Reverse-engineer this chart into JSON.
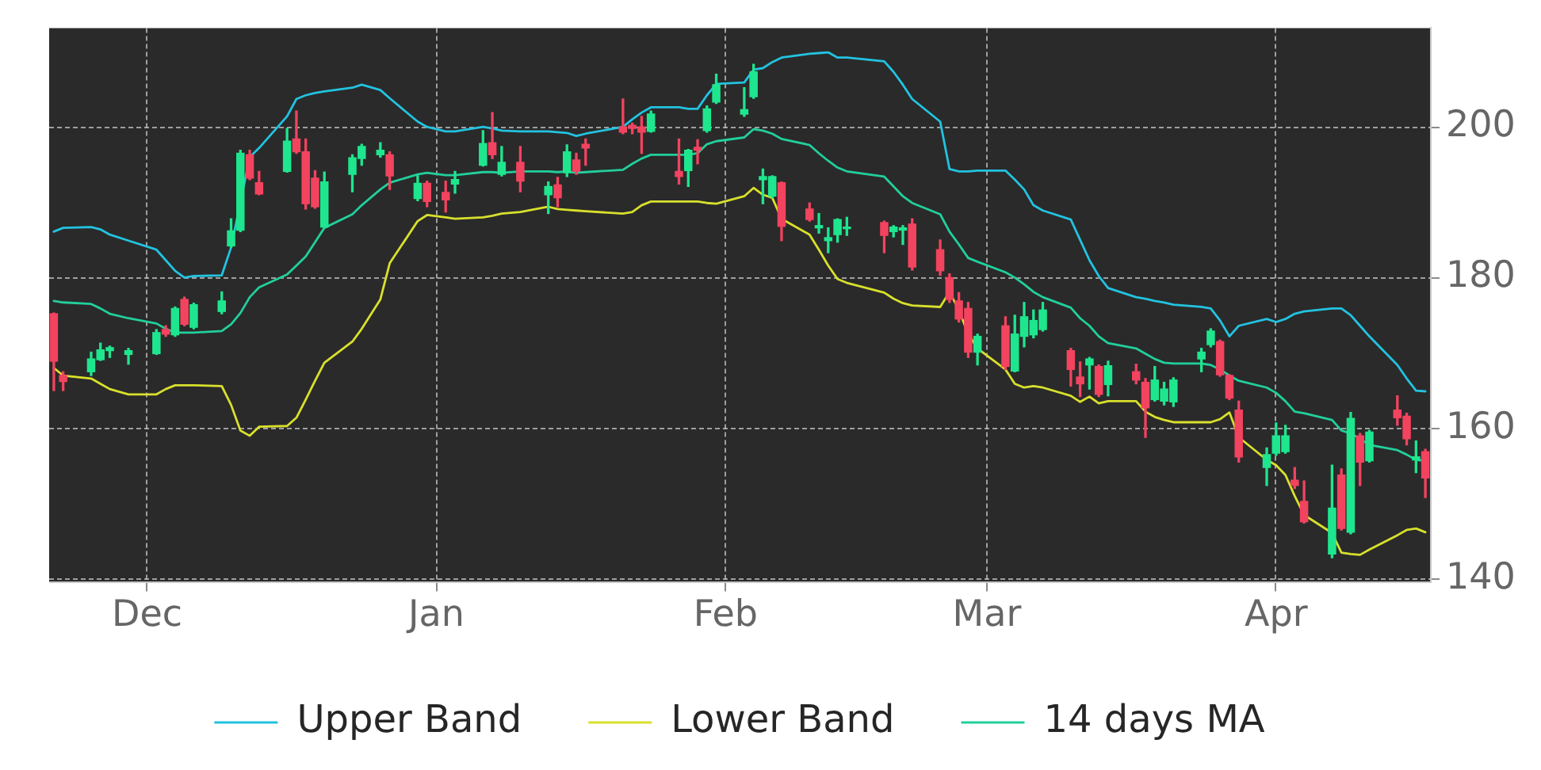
{
  "chart_data": {
    "type": "candlestick",
    "categories": [
      null,
      null,
      null,
      null,
      null,
      null,
      null,
      null,
      null,
      null,
      "Dec",
      null,
      null,
      null,
      null,
      null,
      null,
      null,
      null,
      null,
      null,
      null,
      null,
      null,
      null,
      null,
      null,
      null,
      null,
      null,
      null,
      null,
      null,
      null,
      null,
      null,
      null,
      null,
      null,
      null,
      null,
      "Jan",
      null,
      null,
      null,
      null,
      null,
      null,
      null,
      null,
      null,
      null,
      null,
      null,
      null,
      null,
      null,
      null,
      null,
      null,
      null,
      null,
      null,
      null,
      null,
      null,
      null,
      null,
      null,
      null,
      null,
      null,
      "Feb",
      null,
      null,
      null,
      null,
      null,
      null,
      null,
      null,
      null,
      null,
      null,
      null,
      null,
      null,
      null,
      null,
      null,
      null,
      null,
      null,
      null,
      null,
      null,
      null,
      null,
      null,
      null,
      "Mar",
      null,
      null,
      null,
      null,
      null,
      null,
      null,
      null,
      null,
      null,
      null,
      null,
      null,
      null,
      null,
      null,
      null,
      null,
      null,
      null,
      null,
      null,
      null,
      null,
      null,
      null,
      null,
      null,
      null,
      null,
      "Apr",
      null,
      null,
      null,
      null,
      null,
      null,
      null,
      null,
      null,
      null,
      null,
      null,
      null,
      null,
      null,
      null
    ],
    "ohlc": [
      [
        175.2,
        175.3,
        165.0,
        168.9
      ],
      [
        167.0,
        167.5,
        165.0,
        166.2
      ],
      null,
      null,
      [
        167.5,
        170.1,
        167.0,
        169.2
      ],
      [
        169.1,
        171.3,
        169.0,
        170.4
      ],
      [
        170.3,
        170.9,
        169.4,
        170.7
      ],
      null,
      [
        169.8,
        170.6,
        168.5,
        170.3
      ],
      null,
      null,
      [
        169.9,
        173.1,
        169.8,
        172.7
      ],
      [
        173.1,
        173.6,
        172.2,
        172.5
      ],
      [
        172.4,
        176.1,
        172.2,
        175.9
      ],
      [
        177.1,
        177.4,
        173.6,
        173.8
      ],
      [
        173.4,
        176.6,
        173.2,
        176.4
      ],
      null,
      null,
      [
        175.5,
        178.1,
        175.2,
        176.9
      ],
      [
        184.2,
        187.8,
        184.0,
        186.2
      ],
      [
        186.3,
        196.9,
        186.1,
        196.5
      ],
      [
        196.3,
        196.9,
        193.0,
        193.2
      ],
      [
        192.6,
        194.1,
        191.0,
        191.1
      ],
      null,
      null,
      [
        194.1,
        199.8,
        194.0,
        198.1
      ],
      [
        198.4,
        202.1,
        196.5,
        196.7
      ],
      [
        196.7,
        198.4,
        189.1,
        189.8
      ],
      [
        193.2,
        194.2,
        189.2,
        189.4
      ],
      [
        186.7,
        194.0,
        186.6,
        192.7
      ],
      null,
      null,
      [
        193.7,
        196.3,
        191.4,
        195.9
      ],
      [
        195.8,
        197.7,
        194.9,
        197.4
      ],
      null,
      [
        196.3,
        197.9,
        196.0,
        196.9
      ],
      [
        196.3,
        196.7,
        191.7,
        193.5
      ],
      null,
      null,
      [
        190.5,
        193.5,
        190.2,
        192.5
      ],
      [
        192.5,
        192.8,
        189.4,
        190.1
      ],
      null,
      [
        191.3,
        192.8,
        188.7,
        190.3
      ],
      [
        192.4,
        194.1,
        191.2,
        193.0
      ],
      null,
      null,
      [
        194.9,
        199.5,
        194.8,
        197.8
      ],
      [
        197.9,
        201.9,
        195.8,
        196.3
      ],
      [
        193.7,
        197.4,
        193.5,
        195.3
      ],
      null,
      [
        195.3,
        197.4,
        191.4,
        192.8
      ],
      null,
      null,
      [
        191.0,
        192.7,
        188.5,
        192.1
      ],
      [
        192.3,
        193.3,
        189.4,
        190.6
      ],
      [
        193.9,
        197.6,
        193.4,
        196.7
      ],
      [
        195.6,
        196.5,
        193.7,
        194.1
      ],
      [
        197.7,
        198.4,
        194.9,
        197.2
      ],
      null,
      null,
      null,
      [
        200.0,
        203.7,
        199.1,
        199.3
      ],
      [
        200.2,
        200.5,
        199.1,
        199.8
      ],
      [
        200.0,
        201.4,
        196.5,
        199.3
      ],
      [
        199.4,
        202.1,
        199.3,
        201.7
      ],
      null,
      null,
      [
        194.1,
        198.4,
        192.4,
        193.4
      ],
      [
        194.2,
        197.0,
        192.1,
        196.9
      ],
      [
        197.3,
        198.3,
        195.1,
        196.9
      ],
      [
        199.5,
        202.8,
        199.3,
        202.4
      ],
      [
        203.3,
        207.0,
        203.1,
        205.6
      ],
      null,
      null,
      [
        201.7,
        205.2,
        201.4,
        202.3
      ],
      [
        204.0,
        208.3,
        203.8,
        207.3
      ],
      [
        193.0,
        194.4,
        189.8,
        193.4
      ],
      [
        190.8,
        193.5,
        190.6,
        193.4
      ],
      [
        192.6,
        192.7,
        184.9,
        186.8
      ],
      null,
      null,
      [
        189.1,
        189.9,
        187.5,
        187.7
      ],
      [
        186.6,
        188.5,
        185.9,
        186.9
      ],
      [
        184.9,
        186.6,
        183.3,
        185.3
      ],
      [
        185.7,
        187.8,
        184.7,
        187.7
      ],
      [
        186.5,
        188.0,
        185.6,
        186.7
      ],
      null,
      null,
      null,
      [
        187.3,
        187.5,
        183.3,
        185.6
      ],
      [
        186.1,
        186.9,
        185.4,
        186.7
      ],
      [
        186.3,
        186.9,
        184.4,
        186.6
      ],
      [
        187.1,
        187.8,
        181.0,
        181.4
      ],
      null,
      null,
      [
        183.7,
        185.0,
        180.3,
        180.9
      ],
      [
        180.0,
        180.5,
        176.7,
        177.1
      ],
      [
        176.9,
        178.0,
        174.1,
        174.5
      ],
      [
        175.9,
        176.7,
        169.4,
        170.1
      ],
      [
        170.1,
        172.5,
        168.4,
        172.2
      ],
      null,
      null,
      [
        173.6,
        174.8,
        167.8,
        168.2
      ],
      [
        167.6,
        175.0,
        167.5,
        172.5
      ],
      [
        172.2,
        176.7,
        170.8,
        174.8
      ],
      [
        172.4,
        175.7,
        172.0,
        174.3
      ],
      [
        173.1,
        176.7,
        172.9,
        175.7
      ],
      null,
      null,
      [
        170.3,
        170.6,
        165.6,
        167.8
      ],
      [
        166.8,
        168.8,
        164.2,
        165.9
      ],
      [
        168.4,
        169.4,
        165.2,
        169.2
      ],
      [
        168.2,
        168.4,
        164.2,
        164.5
      ],
      [
        165.8,
        168.9,
        164.3,
        168.3
      ],
      null,
      null,
      [
        167.5,
        168.5,
        165.9,
        166.4
      ],
      [
        166.1,
        166.6,
        158.8,
        162.7
      ],
      [
        163.8,
        168.2,
        163.6,
        166.4
      ],
      [
        163.6,
        166.1,
        163.1,
        165.2
      ],
      [
        163.5,
        166.7,
        162.9,
        166.4
      ],
      null,
      null,
      [
        169.2,
        170.6,
        167.5,
        170.1
      ],
      [
        171.1,
        173.2,
        170.8,
        172.9
      ],
      [
        171.5,
        171.7,
        166.9,
        167.1
      ],
      [
        167.0,
        167.1,
        163.8,
        164.0
      ],
      [
        162.4,
        163.6,
        155.5,
        156.2
      ],
      null,
      null,
      [
        154.8,
        157.4,
        152.4,
        156.5
      ],
      [
        156.7,
        160.7,
        156.4,
        159.0
      ],
      [
        156.9,
        160.4,
        156.7,
        159.0
      ],
      [
        153.1,
        154.8,
        152.0,
        152.4
      ],
      [
        150.3,
        153.0,
        147.4,
        147.6
      ],
      null,
      null,
      [
        143.3,
        155.1,
        142.8,
        149.4
      ],
      [
        153.8,
        154.6,
        146.5,
        146.7
      ],
      [
        146.2,
        162.1,
        146.0,
        161.3
      ],
      [
        159.0,
        159.3,
        152.4,
        155.5
      ],
      [
        155.7,
        159.7,
        155.5,
        159.5
      ],
      null,
      null,
      [
        162.4,
        164.3,
        160.4,
        161.4
      ],
      [
        161.6,
        162.0,
        157.8,
        158.6
      ],
      [
        155.8,
        158.3,
        154.1,
        156.2
      ],
      [
        156.9,
        157.2,
        150.8,
        153.4
      ]
    ],
    "colors": [
      "#f2435f",
      "#f2435f",
      null,
      null,
      "#1ee68e",
      "#1ee68e",
      "#1ee68e",
      null,
      "#1ee68e",
      null,
      null,
      "#1ee68e",
      "#f2435f",
      "#1ee68e",
      "#f2435f",
      "#1ee68e",
      null,
      null,
      "#1ee68e",
      "#1ee68e",
      "#1ee68e",
      "#f2435f",
      "#f2435f",
      null,
      null,
      "#1ee68e",
      "#f2435f",
      "#f2435f",
      "#f2435f",
      "#1ee68e",
      null,
      null,
      "#1ee68e",
      "#1ee68e",
      null,
      "#1ee68e",
      "#f2435f",
      null,
      null,
      "#1ee68e",
      "#f2435f",
      null,
      "#f2435f",
      "#1ee68e",
      null,
      null,
      "#1ee68e",
      "#f2435f",
      "#1ee68e",
      null,
      "#f2435f",
      null,
      null,
      "#1ee68e",
      "#f2435f",
      "#1ee68e",
      "#f2435f",
      "#f2435f",
      null,
      null,
      null,
      "#f2435f",
      "#f2435f",
      "#f2435f",
      "#1ee68e",
      null,
      null,
      "#f2435f",
      "#1ee68e",
      "#f2435f",
      "#1ee68e",
      "#1ee68e",
      null,
      null,
      "#1ee68e",
      "#1ee68e",
      "#1ee68e",
      "#1ee68e",
      "#f2435f",
      null,
      null,
      "#f2435f",
      "#1ee68e",
      "#1ee68e",
      "#1ee68e",
      "#1ee68e",
      null,
      null,
      null,
      "#f2435f",
      "#1ee68e",
      "#1ee68e",
      "#f2435f",
      null,
      null,
      "#f2435f",
      "#f2435f",
      "#f2435f",
      "#f2435f",
      "#1ee68e",
      null,
      null,
      "#f2435f",
      "#1ee68e",
      "#1ee68e",
      "#1ee68e",
      "#1ee68e",
      null,
      null,
      "#f2435f",
      "#f2435f",
      "#1ee68e",
      "#f2435f",
      "#1ee68e",
      null,
      null,
      "#f2435f",
      "#f2435f",
      "#1ee68e",
      "#1ee68e",
      "#1ee68e",
      null,
      null,
      "#1ee68e",
      "#1ee68e",
      "#f2435f",
      "#f2435f",
      "#f2435f",
      null,
      null,
      "#1ee68e",
      "#1ee68e",
      "#1ee68e",
      "#f2435f",
      "#f2435f",
      null,
      null,
      "#1ee68e",
      "#f2435f",
      "#1ee68e",
      "#f2435f",
      "#1ee68e",
      null,
      null,
      "#f2435f",
      "#f2435f",
      "#1ee68e",
      "#f2435f"
    ],
    "series": [
      {
        "name": "Upper Band",
        "type": "line",
        "color": "#22c3e0",
        "values": [
          186.1,
          186.6,
          null,
          null,
          186.7,
          186.4,
          185.7,
          null,
          184.9,
          null,
          null,
          183.7,
          182.3,
          180.9,
          180.0,
          180.2,
          null,
          null,
          180.3,
          184.0,
          null,
          196.0,
          197.2,
          null,
          null,
          201.4,
          203.7,
          204.2,
          204.5,
          204.7,
          null,
          null,
          205.2,
          205.6,
          null,
          204.9,
          203.8,
          null,
          null,
          200.7,
          200.0,
          null,
          199.4,
          199.4,
          null,
          null,
          200.0,
          199.8,
          199.5,
          null,
          199.4,
          null,
          null,
          199.4,
          199.3,
          199.2,
          198.8,
          199.1,
          null,
          null,
          null,
          200.0,
          201.0,
          201.9,
          202.6,
          null,
          null,
          202.6,
          202.4,
          202.4,
          204.2,
          205.7,
          null,
          null,
          205.9,
          207.6,
          207.8,
          208.6,
          209.2,
          null,
          null,
          209.7,
          209.8,
          209.9,
          209.2,
          209.2,
          null,
          null,
          null,
          208.7,
          207.3,
          205.6,
          203.7,
          null,
          null,
          200.7,
          194.4,
          194.1,
          194.1,
          194.2,
          null,
          null,
          194.2,
          193.0,
          191.7,
          189.6,
          188.9,
          null,
          null,
          187.7,
          185.0,
          182.3,
          180.2,
          178.6,
          null,
          null,
          177.4,
          177.2,
          176.9,
          176.7,
          176.4,
          null,
          null,
          176.1,
          175.9,
          174.3,
          172.2,
          173.6,
          null,
          null,
          174.5,
          174.1,
          174.5,
          175.2,
          175.5,
          null,
          null,
          175.9,
          175.9,
          175.0,
          173.6,
          172.2,
          null,
          null,
          168.4,
          166.6,
          165.0,
          164.9
        ]
      },
      {
        "name": "Lower Band",
        "type": "line",
        "color": "#d8e02c",
        "values": [
          168.0,
          167.0,
          null,
          null,
          166.6,
          165.9,
          165.2,
          null,
          164.5,
          null,
          null,
          164.5,
          165.2,
          165.7,
          165.7,
          165.7,
          null,
          null,
          165.6,
          163.1,
          159.7,
          159.0,
          160.2,
          null,
          null,
          160.3,
          161.4,
          163.8,
          166.3,
          168.7,
          null,
          null,
          171.5,
          173.2,
          null,
          177.1,
          181.9,
          null,
          null,
          187.5,
          188.3,
          null,
          188.0,
          187.8,
          null,
          null,
          188.0,
          188.2,
          188.5,
          null,
          188.7,
          null,
          null,
          189.4,
          189.1,
          189.0,
          188.9,
          188.8,
          null,
          null,
          null,
          188.5,
          188.7,
          189.6,
          190.1,
          null,
          null,
          190.1,
          190.1,
          190.1,
          189.9,
          189.8,
          null,
          null,
          190.8,
          191.9,
          191.0,
          190.6,
          187.8,
          null,
          null,
          185.7,
          183.7,
          181.6,
          179.8,
          179.3,
          null,
          null,
          null,
          178.0,
          177.2,
          176.6,
          176.3,
          null,
          null,
          176.1,
          178.1,
          175.7,
          172.5,
          170.6,
          null,
          null,
          167.8,
          165.9,
          165.4,
          165.6,
          165.4,
          null,
          null,
          164.3,
          163.5,
          164.2,
          163.3,
          163.6,
          null,
          null,
          163.6,
          162.2,
          161.5,
          161.1,
          160.8,
          null,
          null,
          160.8,
          160.8,
          161.2,
          162.1,
          158.8,
          null,
          null,
          155.8,
          155.1,
          153.8,
          151.0,
          148.5,
          null,
          null,
          146.1,
          143.5,
          143.3,
          143.2,
          143.9,
          null,
          null,
          145.8,
          146.5,
          146.7,
          146.2
        ]
      },
      {
        "name": "14 days MA",
        "type": "line",
        "color": "#22cf9c",
        "values": [
          176.9,
          176.7,
          null,
          null,
          176.5,
          175.9,
          175.2,
          null,
          174.6,
          null,
          null,
          173.9,
          173.2,
          172.7,
          172.7,
          172.7,
          null,
          null,
          172.9,
          173.8,
          175.3,
          177.4,
          178.7,
          null,
          null,
          180.4,
          181.6,
          182.8,
          184.7,
          186.6,
          null,
          null,
          188.4,
          189.6,
          null,
          191.7,
          192.6,
          null,
          null,
          193.7,
          193.9,
          null,
          193.6,
          193.6,
          null,
          null,
          194.0,
          194.0,
          193.9,
          null,
          194.1,
          null,
          null,
          194.1,
          194.0,
          194.1,
          193.9,
          194.0,
          null,
          null,
          null,
          194.3,
          195.1,
          195.8,
          196.3,
          null,
          null,
          196.3,
          196.3,
          196.5,
          197.7,
          198.1,
          null,
          null,
          198.6,
          199.7,
          199.5,
          199.1,
          198.4,
          null,
          null,
          197.6,
          196.5,
          195.5,
          194.6,
          194.1,
          null,
          null,
          null,
          193.4,
          192.1,
          190.8,
          189.9,
          null,
          null,
          188.4,
          186.1,
          184.4,
          182.6,
          182.1,
          null,
          null,
          180.7,
          180.0,
          179.1,
          178.1,
          177.4,
          null,
          null,
          176.0,
          174.6,
          173.6,
          172.2,
          171.3,
          null,
          null,
          170.6,
          169.9,
          169.2,
          168.7,
          168.6,
          null,
          null,
          168.6,
          168.4,
          167.8,
          167.0,
          166.3,
          null,
          null,
          165.4,
          164.7,
          163.6,
          162.2,
          162.0,
          null,
          null,
          161.1,
          159.7,
          159.3,
          158.6,
          157.8,
          null,
          null,
          157.1,
          156.5,
          155.8,
          155.7
        ]
      }
    ],
    "ylim": [
      139.6,
      213.1
    ],
    "yticks": [
      140,
      160,
      180,
      200
    ],
    "grid": true,
    "legend": "bottom"
  }
}
